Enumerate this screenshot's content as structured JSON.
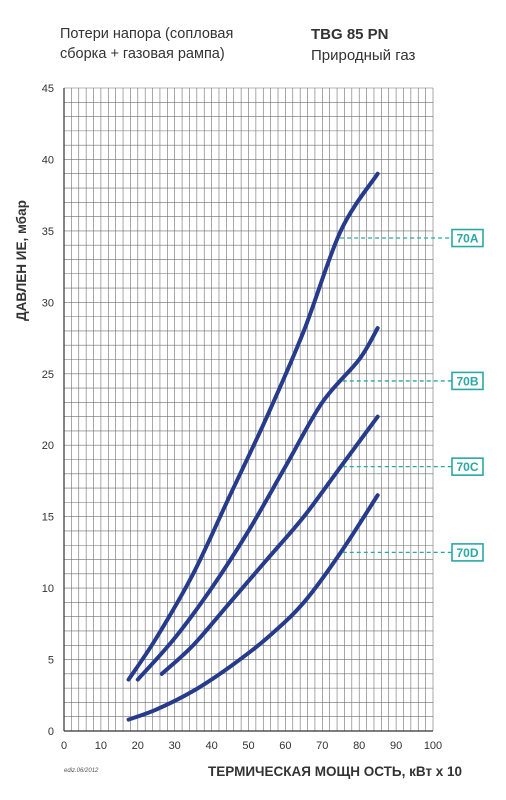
{
  "header": {
    "subtitle_line1": "Потери напора (сопловая",
    "subtitle_line2": "сборка + газовая рампа)",
    "model": "TBG 85 PN",
    "fuel": "Природный газ"
  },
  "footer_note": "ediz.06/2012",
  "colors": {
    "curve": "#263b8c",
    "label": "#2aa8a4",
    "grid": "#6f6f6f"
  },
  "chart_data": {
    "type": "line",
    "title": "",
    "xlabel": "ТЕРМИЧЕСКАЯ МОЩН ОСТЬ, кВт x 10",
    "ylabel": "ДАВЛЕН ИЕ, мбар",
    "xlim": [
      0,
      100
    ],
    "ylim": [
      0,
      45
    ],
    "x_ticks": [
      "0",
      "10",
      "20",
      "30",
      "40",
      "50",
      "60",
      "70",
      "80",
      "90",
      "100"
    ],
    "y_ticks": [
      "0",
      "5",
      "10",
      "15",
      "20",
      "25",
      "30",
      "35",
      "40",
      "45"
    ],
    "grid": true,
    "series": [
      {
        "name": "70A",
        "x": [
          17.5,
          25,
          35,
          45,
          55,
          65,
          75,
          85
        ],
        "y": [
          3.6,
          6.5,
          11.0,
          16.5,
          22.0,
          28.0,
          35.0,
          39.0
        ]
      },
      {
        "name": "70B",
        "x": [
          20,
          30,
          40,
          50,
          60,
          70,
          80,
          85
        ],
        "y": [
          3.6,
          6.5,
          10.0,
          14.0,
          18.5,
          23.0,
          26.0,
          28.2
        ]
      },
      {
        "name": "70C",
        "x": [
          26.5,
          35,
          45,
          55,
          65,
          75,
          85
        ],
        "y": [
          4.0,
          6.0,
          9.0,
          12.0,
          15.0,
          18.5,
          22.0
        ]
      },
      {
        "name": "70D",
        "x": [
          17.5,
          25,
          35,
          45,
          55,
          65,
          75,
          85
        ],
        "y": [
          0.8,
          1.5,
          2.8,
          4.5,
          6.5,
          9.0,
          12.5,
          16.5
        ]
      }
    ],
    "series_labels": [
      {
        "name": "70A",
        "y": 34.5
      },
      {
        "name": "70B",
        "y": 24.5
      },
      {
        "name": "70C",
        "y": 18.5
      },
      {
        "name": "70D",
        "y": 12.5
      }
    ]
  }
}
